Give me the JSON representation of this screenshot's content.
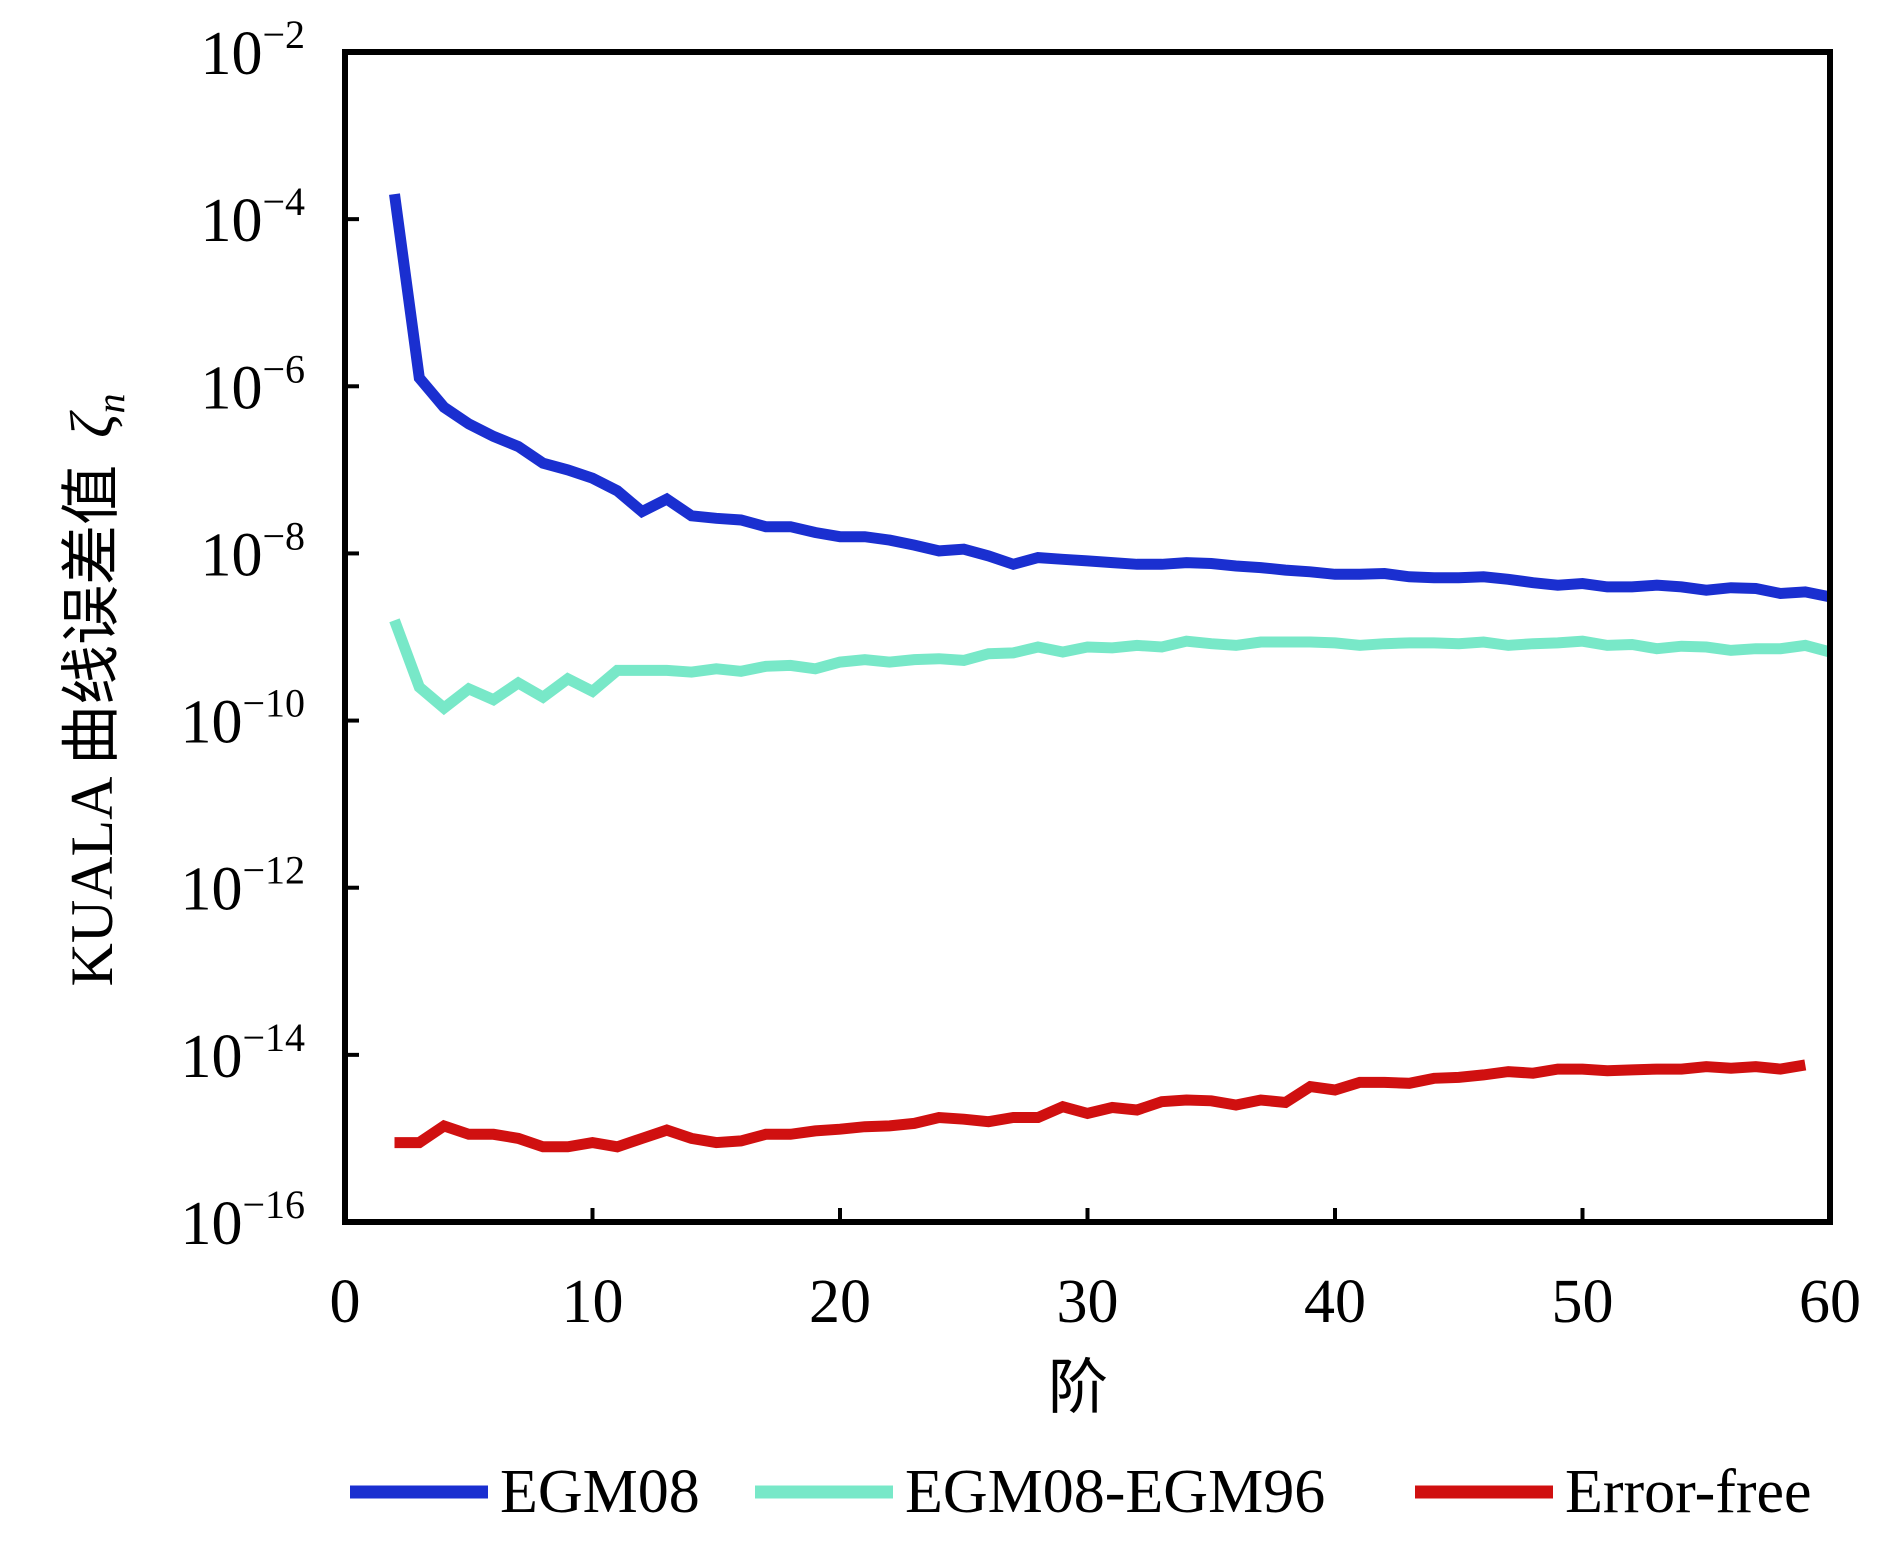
{
  "chart_data": {
    "type": "line",
    "title": "",
    "xlabel": "阶",
    "ylabel": "KUALA 曲线误差值",
    "ylabel_symbol": "ζ",
    "ylabel_subscript": "n",
    "xlim": [
      0,
      60
    ],
    "ylim_log10": [
      -16,
      -2
    ],
    "yscale": "log",
    "x_ticks": [
      {
        "value": 0,
        "label": "0"
      },
      {
        "value": 10,
        "label": "10"
      },
      {
        "value": 20,
        "label": "20"
      },
      {
        "value": 30,
        "label": "30"
      },
      {
        "value": 40,
        "label": "40"
      },
      {
        "value": 50,
        "label": "50"
      },
      {
        "value": 60,
        "label": "60"
      }
    ],
    "y_ticks": [
      {
        "exp": -2,
        "base": "10",
        "sup": "−2"
      },
      {
        "exp": -4,
        "base": "10",
        "sup": "−4"
      },
      {
        "exp": -6,
        "base": "10",
        "sup": "−6"
      },
      {
        "exp": -8,
        "base": "10",
        "sup": "−8"
      },
      {
        "exp": -10,
        "base": "10",
        "sup": "−10"
      },
      {
        "exp": -12,
        "base": "10",
        "sup": "−12"
      },
      {
        "exp": -14,
        "base": "10",
        "sup": "−14"
      },
      {
        "exp": -16,
        "base": "10",
        "sup": "−16"
      }
    ],
    "legend_position": "bottom",
    "series": [
      {
        "name": "EGM08",
        "color": "#1a2fd0",
        "x": [
          2,
          3,
          4,
          5,
          6,
          7,
          8,
          9,
          10,
          11,
          12,
          13,
          14,
          15,
          16,
          17,
          18,
          19,
          20,
          21,
          22,
          23,
          24,
          25,
          26,
          27,
          28,
          29,
          30,
          31,
          32,
          33,
          34,
          35,
          36,
          37,
          38,
          39,
          40,
          41,
          42,
          43,
          44,
          45,
          46,
          47,
          48,
          49,
          50,
          51,
          52,
          53,
          54,
          55,
          56,
          57,
          58,
          59,
          60
        ],
        "log10_values": [
          -3.7,
          -5.9,
          -6.25,
          -6.45,
          -6.6,
          -6.72,
          -6.92,
          -7.0,
          -7.1,
          -7.25,
          -7.5,
          -7.35,
          -7.55,
          -7.58,
          -7.6,
          -7.68,
          -7.68,
          -7.75,
          -7.8,
          -7.8,
          -7.84,
          -7.9,
          -7.97,
          -7.95,
          -8.03,
          -8.13,
          -8.05,
          -8.07,
          -8.09,
          -8.11,
          -8.13,
          -8.13,
          -8.11,
          -8.12,
          -8.15,
          -8.17,
          -8.2,
          -8.22,
          -8.25,
          -8.25,
          -8.24,
          -8.28,
          -8.29,
          -8.29,
          -8.28,
          -8.31,
          -8.35,
          -8.38,
          -8.36,
          -8.4,
          -8.4,
          -8.38,
          -8.4,
          -8.44,
          -8.41,
          -8.42,
          -8.48,
          -8.46,
          -8.52
        ]
      },
      {
        "name": "EGM08-EGM96",
        "color": "#78e8c8",
        "x": [
          2,
          3,
          4,
          5,
          6,
          7,
          8,
          9,
          10,
          11,
          12,
          13,
          14,
          15,
          16,
          17,
          18,
          19,
          20,
          21,
          22,
          23,
          24,
          25,
          26,
          27,
          28,
          29,
          30,
          31,
          32,
          33,
          34,
          35,
          36,
          37,
          38,
          39,
          40,
          41,
          42,
          43,
          44,
          45,
          46,
          47,
          48,
          49,
          50,
          51,
          52,
          53,
          54,
          55,
          56,
          57,
          58,
          59,
          60
        ],
        "log10_values": [
          -8.8,
          -9.6,
          -9.85,
          -9.62,
          -9.75,
          -9.55,
          -9.72,
          -9.5,
          -9.65,
          -9.4,
          -9.4,
          -9.4,
          -9.42,
          -9.38,
          -9.41,
          -9.35,
          -9.34,
          -9.38,
          -9.3,
          -9.27,
          -9.3,
          -9.27,
          -9.26,
          -9.28,
          -9.2,
          -9.19,
          -9.12,
          -9.18,
          -9.12,
          -9.13,
          -9.1,
          -9.12,
          -9.05,
          -9.08,
          -9.1,
          -9.06,
          -9.06,
          -9.06,
          -9.07,
          -9.1,
          -9.08,
          -9.07,
          -9.07,
          -9.08,
          -9.06,
          -9.1,
          -9.08,
          -9.07,
          -9.05,
          -9.1,
          -9.09,
          -9.14,
          -9.11,
          -9.12,
          -9.16,
          -9.14,
          -9.14,
          -9.1,
          -9.18
        ]
      },
      {
        "name": "Error-free",
        "color": "#d01010",
        "x": [
          2,
          3,
          4,
          5,
          6,
          7,
          8,
          9,
          10,
          11,
          12,
          13,
          14,
          15,
          16,
          17,
          18,
          19,
          20,
          21,
          22,
          23,
          24,
          25,
          26,
          27,
          28,
          29,
          30,
          31,
          32,
          33,
          34,
          35,
          36,
          37,
          38,
          39,
          40,
          41,
          42,
          43,
          44,
          45,
          46,
          47,
          48,
          49,
          50,
          51,
          52,
          53,
          54,
          55,
          56,
          57,
          58,
          59
        ],
        "log10_values": [
          -15.05,
          -15.05,
          -14.85,
          -14.95,
          -14.95,
          -15.0,
          -15.1,
          -15.1,
          -15.05,
          -15.1,
          -15.0,
          -14.9,
          -15.0,
          -15.05,
          -15.03,
          -14.95,
          -14.95,
          -14.91,
          -14.89,
          -14.86,
          -14.85,
          -14.82,
          -14.75,
          -14.77,
          -14.8,
          -14.75,
          -14.75,
          -14.62,
          -14.7,
          -14.63,
          -14.66,
          -14.56,
          -14.54,
          -14.55,
          -14.6,
          -14.54,
          -14.57,
          -14.38,
          -14.42,
          -14.33,
          -14.33,
          -14.34,
          -14.28,
          -14.27,
          -14.24,
          -14.2,
          -14.22,
          -14.17,
          -14.17,
          -14.19,
          -14.18,
          -14.17,
          -14.17,
          -14.14,
          -14.16,
          -14.14,
          -14.17,
          -14.12
        ]
      }
    ]
  }
}
